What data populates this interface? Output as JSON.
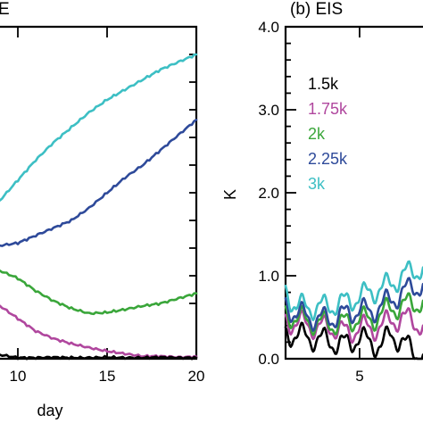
{
  "chart_data": [
    {
      "panel": "left",
      "type": "line",
      "title": "E",
      "xlabel": "day",
      "ylabel": "",
      "xlim": [
        9,
        20
      ],
      "x_ticks": [
        10,
        15,
        20
      ],
      "x_tick_labels": [
        "10",
        "15",
        "20"
      ],
      "y_ticks_unlabeled": true,
      "series": [
        {
          "color": "#3dbfc4",
          "x": [
            9,
            10,
            11,
            12,
            13,
            14,
            15,
            16,
            17,
            18,
            19,
            20
          ],
          "y": [
            3.15,
            3.55,
            3.95,
            4.3,
            4.6,
            4.9,
            5.15,
            5.35,
            5.55,
            5.75,
            5.9,
            6.05
          ]
        },
        {
          "color": "#2e4a9a",
          "x": [
            9,
            10,
            11,
            12,
            13,
            14,
            15,
            16,
            17,
            18,
            19,
            20
          ],
          "y": [
            2.25,
            2.3,
            2.45,
            2.6,
            2.75,
            3.0,
            3.3,
            3.6,
            3.85,
            4.15,
            4.45,
            4.75
          ]
        },
        {
          "color": "#3aa63a",
          "x": [
            9,
            10,
            11,
            12,
            13,
            14,
            15,
            16,
            17,
            18,
            19,
            20
          ],
          "y": [
            1.75,
            1.6,
            1.35,
            1.15,
            1.0,
            0.9,
            0.92,
            0.98,
            1.05,
            1.1,
            1.2,
            1.3
          ]
        },
        {
          "color": "#b0479e",
          "x": [
            9,
            10,
            11,
            12,
            13,
            14,
            15,
            16,
            17,
            18,
            19,
            20
          ],
          "y": [
            1.05,
            0.8,
            0.55,
            0.4,
            0.3,
            0.22,
            0.15,
            0.1,
            0.05,
            0.05,
            0.03,
            0.04
          ]
        },
        {
          "color": "#000000",
          "x": [
            9,
            10,
            11,
            12,
            13,
            14,
            15,
            16,
            17,
            18,
            19,
            20
          ],
          "y": [
            0.08,
            0.02,
            0.02,
            0.03,
            0.02,
            0.02,
            0.03,
            0.02,
            0.02,
            0.03,
            0.02,
            0.02
          ]
        }
      ]
    },
    {
      "panel": "right",
      "type": "line",
      "title": "(b) EIS",
      "xlabel": "",
      "ylabel": "K",
      "ylim": [
        0,
        4
      ],
      "xlim": [
        1.5,
        8
      ],
      "y_ticks": [
        0,
        1,
        2,
        3,
        4
      ],
      "y_tick_labels": [
        "0.0",
        "1.0",
        "2.0",
        "3.0",
        "4.0"
      ],
      "x_ticks": [
        5
      ],
      "x_tick_labels": [
        "5"
      ],
      "legend_position": "upper-left",
      "series": [
        {
          "name": "1.5k",
          "color": "#000000",
          "x": [
            1.5,
            2,
            2.5,
            3,
            3.5,
            4,
            4.5,
            5,
            5.5,
            6,
            6.5,
            7,
            7.5,
            8
          ],
          "y": [
            0.35,
            0.25,
            0.3,
            0.2,
            0.25,
            0.15,
            0.2,
            0.25,
            0.2,
            0.15,
            0.3,
            0.2,
            0.1,
            0.05
          ]
        },
        {
          "name": "1.75k",
          "color": "#b0479e",
          "x": [
            1.5,
            2,
            2.5,
            3,
            3.5,
            4,
            4.5,
            5,
            5.5,
            6,
            6.5,
            7,
            7.5,
            8
          ],
          "y": [
            0.5,
            0.4,
            0.45,
            0.35,
            0.4,
            0.35,
            0.3,
            0.4,
            0.35,
            0.4,
            0.45,
            0.5,
            0.45,
            0.4
          ]
        },
        {
          "name": "2k",
          "color": "#3aa63a",
          "x": [
            1.5,
            2,
            2.5,
            3,
            3.5,
            4,
            4.5,
            5,
            5.5,
            6,
            6.5,
            7,
            7.5,
            8
          ],
          "y": [
            0.6,
            0.45,
            0.5,
            0.4,
            0.45,
            0.4,
            0.45,
            0.5,
            0.45,
            0.55,
            0.6,
            0.65,
            0.65,
            0.7
          ]
        },
        {
          "name": "2.25k",
          "color": "#2e4a9a",
          "x": [
            1.5,
            2,
            2.5,
            3,
            3.5,
            4,
            4.5,
            5,
            5.5,
            6,
            6.5,
            7,
            7.5,
            8
          ],
          "y": [
            0.7,
            0.5,
            0.55,
            0.45,
            0.5,
            0.5,
            0.55,
            0.6,
            0.55,
            0.65,
            0.7,
            0.8,
            0.85,
            0.9
          ]
        },
        {
          "name": "3k",
          "color": "#3dbfc4",
          "x": [
            1.5,
            2,
            2.5,
            3,
            3.5,
            4,
            4.5,
            5,
            5.5,
            6,
            6.5,
            7,
            7.5,
            8
          ],
          "y": [
            0.85,
            0.6,
            0.65,
            0.6,
            0.65,
            0.65,
            0.7,
            0.75,
            0.8,
            0.85,
            0.9,
            1.0,
            1.05,
            1.1
          ]
        }
      ]
    }
  ]
}
